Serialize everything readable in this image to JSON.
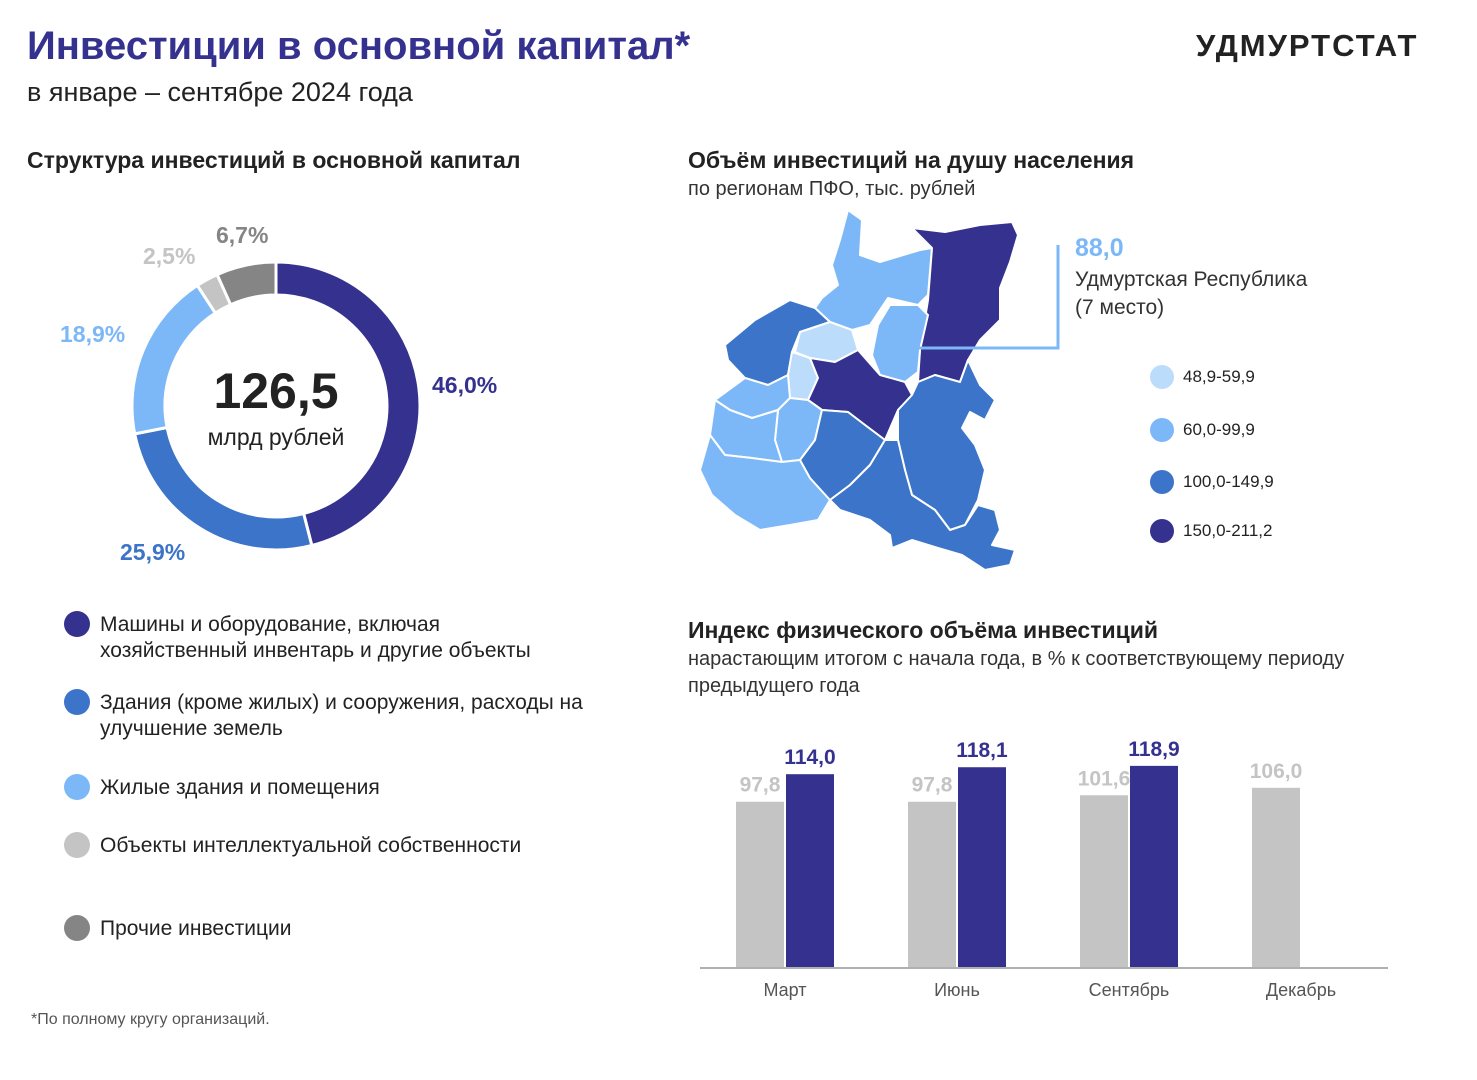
{
  "header": {
    "title": "Инвестиции в основной капитал*",
    "subtitle": "в январе – сентябре 2024 года",
    "logo": "УДМУРТСТАТ"
  },
  "structure": {
    "heading": "Структура инвестиций в основной капитал",
    "center_value": "126,5",
    "center_unit": "млрд рублей"
  },
  "map": {
    "heading": "Объём инвестиций на душу населения",
    "subheading": "по регионам ПФО, тыс. рублей",
    "highlight": {
      "value": "88,0",
      "name": "Удмуртская Республика",
      "rank": "(7 место)"
    },
    "legend": [
      {
        "label": "48,9-59,9",
        "color": "#bcdcfb"
      },
      {
        "label": "60,0-99,9",
        "color": "#7cb8f7"
      },
      {
        "label": "100,0-149,9",
        "color": "#3b74c8"
      },
      {
        "label": "150,0-211,2",
        "color": "#35318f"
      }
    ]
  },
  "index": {
    "heading": "Индекс физического объёма инвестиций",
    "subheading": "нарастающим итогом с начала года, в % к соответствующему периоду предыдущего года"
  },
  "chart_data": [
    {
      "type": "pie",
      "title": "Структура инвестиций в основной капитал",
      "center_label": "126,5 млрд рублей",
      "slices": [
        {
          "label": "Машины и оборудование, включая хозяйственный инвентарь и другие объекты",
          "value": 46.0,
          "display": "46,0%",
          "color": "#35318f"
        },
        {
          "label": "Здания (кроме жилых) и сооружения, расходы на улучшение земель",
          "value": 25.9,
          "display": "25,9%",
          "color": "#3b74c8"
        },
        {
          "label": "Жилые здания и помещения",
          "value": 18.9,
          "display": "18,9%",
          "color": "#7cb8f7"
        },
        {
          "label": "Объекты интеллектуальной собственности",
          "value": 2.5,
          "display": "2,5%",
          "color": "#c4c4c4"
        },
        {
          "label": "Прочие инвестиции",
          "value": 6.7,
          "display": "6,7%",
          "color": "#858585"
        }
      ]
    },
    {
      "type": "bar",
      "title": "Индекс физического объёма инвестиций",
      "categories": [
        "Март",
        "Июнь",
        "Сентябрь",
        "Декабрь"
      ],
      "ylim": [
        0,
        120
      ],
      "series": [
        {
          "values": [
            97.8,
            97.8,
            101.6,
            106.0
          ],
          "labels": [
            "97,8",
            "97,8",
            "101,6",
            "106,0"
          ],
          "color": "#c4c4c4"
        },
        {
          "values": [
            114.0,
            118.1,
            118.9,
            null
          ],
          "labels": [
            "114,0",
            "118,1",
            "118,9",
            null
          ],
          "color": "#35318f"
        }
      ]
    }
  ],
  "footnote": "*По полному кругу организаций."
}
